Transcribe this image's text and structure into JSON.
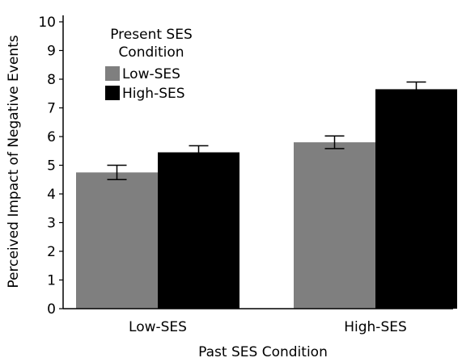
{
  "chart_data": {
    "type": "bar",
    "categories": [
      "Low-SES",
      "High-SES"
    ],
    "series": [
      {
        "name": "Low-SES",
        "values": [
          4.75,
          5.8
        ],
        "errors": [
          0.25,
          0.22
        ],
        "color": "#7f7f7f"
      },
      {
        "name": "High-SES",
        "values": [
          5.45,
          7.65
        ],
        "errors": [
          0.23,
          0.25
        ],
        "color": "#000000"
      }
    ],
    "xlabel": "Past SES Condition",
    "ylabel": "Perceived Impact of Negative Events",
    "ylim": [
      0,
      10
    ],
    "yticks": [
      "0",
      "1",
      "2",
      "3",
      "4",
      "5",
      "6",
      "7",
      "8",
      "9",
      "10"
    ],
    "legend": {
      "title_line1": "Present SES",
      "title_line2": "Condition",
      "placement": "top-left"
    },
    "grid": false
  }
}
